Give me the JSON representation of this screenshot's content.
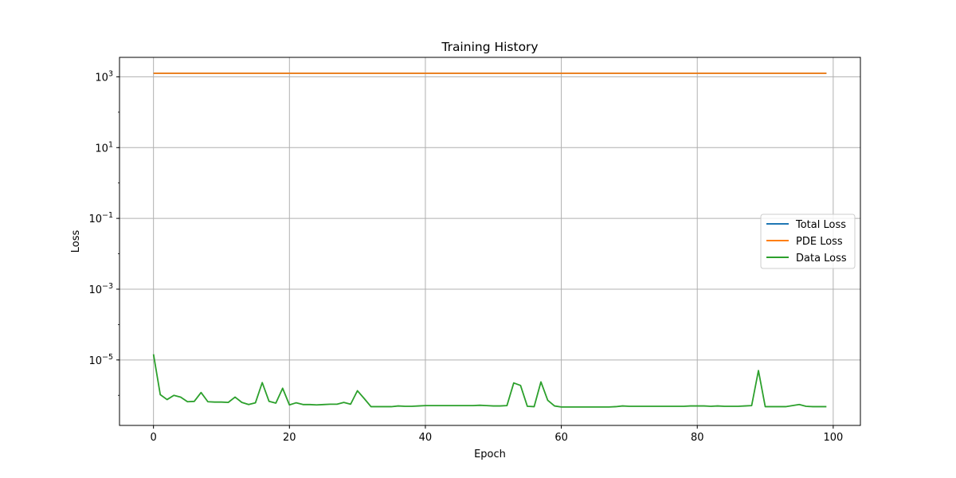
{
  "chart_data": {
    "type": "line",
    "title": "Training History",
    "xlabel": "Epoch",
    "ylabel": "Loss",
    "xlim": [
      -5,
      104
    ],
    "ylim_log10": [
      -6.85,
      3.55
    ],
    "y_scale": "log",
    "grid": true,
    "legend_position": "center-right",
    "x_ticks": [
      0,
      20,
      40,
      60,
      80,
      100
    ],
    "y_ticks": [
      {
        "exp": 3,
        "base": "10",
        "sup": "3"
      },
      {
        "exp": 1,
        "base": "10",
        "sup": "1"
      },
      {
        "exp": -1,
        "base": "10",
        "sup": "−1"
      },
      {
        "exp": -3,
        "base": "10",
        "sup": "−3"
      },
      {
        "exp": -5,
        "base": "10",
        "sup": "−5"
      }
    ],
    "series": [
      {
        "name": "Total Loss",
        "color": "#1f77b4",
        "y_log10": [
          3.1,
          3.1,
          3.1,
          3.1,
          3.1,
          3.1,
          3.1,
          3.1,
          3.1,
          3.1,
          3.1,
          3.1,
          3.1,
          3.1,
          3.1,
          3.1,
          3.1,
          3.1,
          3.1,
          3.1,
          3.1,
          3.1,
          3.1,
          3.1,
          3.1,
          3.1,
          3.1,
          3.1,
          3.1,
          3.1,
          3.1,
          3.1,
          3.1,
          3.1,
          3.1,
          3.1,
          3.1,
          3.1,
          3.1,
          3.1,
          3.1,
          3.1,
          3.1,
          3.1,
          3.1,
          3.1,
          3.1,
          3.1,
          3.1,
          3.1,
          3.1,
          3.1,
          3.1,
          3.1,
          3.1,
          3.1,
          3.1,
          3.1,
          3.1,
          3.1,
          3.1,
          3.1,
          3.1,
          3.1,
          3.1,
          3.1,
          3.1,
          3.1,
          3.1,
          3.1,
          3.1,
          3.1,
          3.1,
          3.1,
          3.1,
          3.1,
          3.1,
          3.1,
          3.1,
          3.1,
          3.1,
          3.1,
          3.1,
          3.1,
          3.1,
          3.1,
          3.1,
          3.1,
          3.1,
          3.1,
          3.1,
          3.1,
          3.1,
          3.1,
          3.1,
          3.1,
          3.1,
          3.1,
          3.1,
          3.1
        ]
      },
      {
        "name": "PDE Loss",
        "color": "#ff7f0e",
        "y_log10": [
          3.1,
          3.1,
          3.1,
          3.1,
          3.1,
          3.1,
          3.1,
          3.1,
          3.1,
          3.1,
          3.1,
          3.1,
          3.1,
          3.1,
          3.1,
          3.1,
          3.1,
          3.1,
          3.1,
          3.1,
          3.1,
          3.1,
          3.1,
          3.1,
          3.1,
          3.1,
          3.1,
          3.1,
          3.1,
          3.1,
          3.1,
          3.1,
          3.1,
          3.1,
          3.1,
          3.1,
          3.1,
          3.1,
          3.1,
          3.1,
          3.1,
          3.1,
          3.1,
          3.1,
          3.1,
          3.1,
          3.1,
          3.1,
          3.1,
          3.1,
          3.1,
          3.1,
          3.1,
          3.1,
          3.1,
          3.1,
          3.1,
          3.1,
          3.1,
          3.1,
          3.1,
          3.1,
          3.1,
          3.1,
          3.1,
          3.1,
          3.1,
          3.1,
          3.1,
          3.1,
          3.1,
          3.1,
          3.1,
          3.1,
          3.1,
          3.1,
          3.1,
          3.1,
          3.1,
          3.1,
          3.1,
          3.1,
          3.1,
          3.1,
          3.1,
          3.1,
          3.1,
          3.1,
          3.1,
          3.1,
          3.1,
          3.1,
          3.1,
          3.1,
          3.1,
          3.1,
          3.1,
          3.1,
          3.1,
          3.1
        ]
      },
      {
        "name": "Data Loss",
        "color": "#2ca02c",
        "y_log10": [
          -4.84,
          -5.98,
          -6.12,
          -6.0,
          -6.05,
          -6.18,
          -6.17,
          -5.92,
          -6.18,
          -6.19,
          -6.19,
          -6.2,
          -6.05,
          -6.2,
          -6.26,
          -6.21,
          -5.64,
          -6.17,
          -6.22,
          -5.8,
          -6.27,
          -6.21,
          -6.26,
          -6.26,
          -6.27,
          -6.26,
          -6.25,
          -6.25,
          -6.2,
          -6.25,
          -5.87,
          -6.09,
          -6.32,
          -6.32,
          -6.32,
          -6.32,
          -6.3,
          -6.31,
          -6.31,
          -6.3,
          -6.29,
          -6.29,
          -6.29,
          -6.29,
          -6.29,
          -6.29,
          -6.29,
          -6.29,
          -6.28,
          -6.29,
          -6.3,
          -6.3,
          -6.29,
          -5.65,
          -5.72,
          -6.31,
          -6.32,
          -5.62,
          -6.14,
          -6.3,
          -6.33,
          -6.33,
          -6.33,
          -6.33,
          -6.33,
          -6.33,
          -6.33,
          -6.33,
          -6.32,
          -6.3,
          -6.31,
          -6.31,
          -6.31,
          -6.31,
          -6.31,
          -6.31,
          -6.31,
          -6.31,
          -6.31,
          -6.3,
          -6.3,
          -6.3,
          -6.31,
          -6.3,
          -6.31,
          -6.31,
          -6.31,
          -6.3,
          -6.29,
          -5.3,
          -6.32,
          -6.32,
          -6.32,
          -6.32,
          -6.29,
          -6.26,
          -6.31,
          -6.32,
          -6.32,
          -6.32
        ]
      }
    ]
  }
}
